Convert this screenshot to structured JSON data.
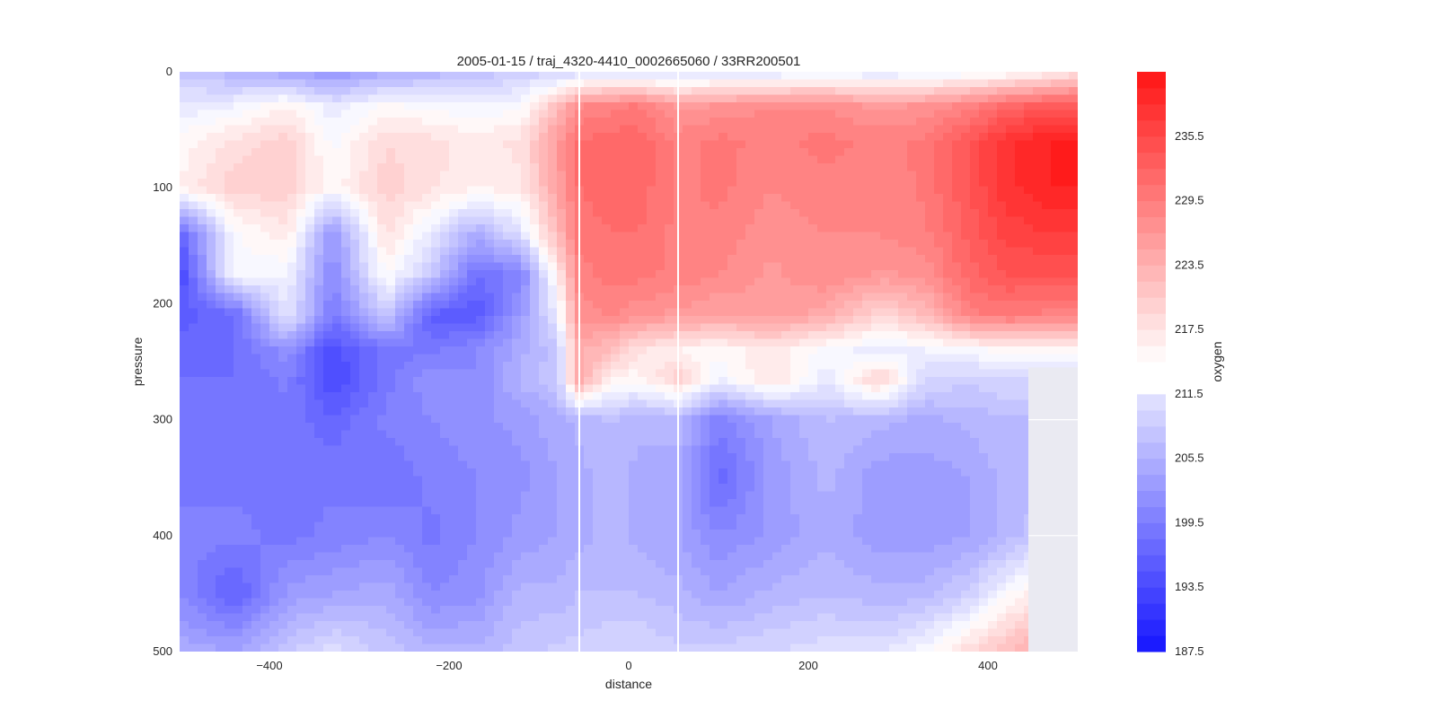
{
  "chart_data": {
    "type": "heatmap",
    "title": "2005-01-15 / traj_4320-4410_0002665060 / 33RR200501",
    "xlabel": "distance",
    "ylabel": "pressure",
    "colorbar_label": "oxygen",
    "xlim": [
      -500,
      500
    ],
    "ylim": [
      500,
      0
    ],
    "y_inverted": true,
    "x_ticks": [
      -400,
      -200,
      0,
      200,
      400
    ],
    "x_tick_labels": [
      "−400",
      "−200",
      "0",
      "200",
      "400"
    ],
    "y_ticks": [
      0,
      100,
      200,
      300,
      400,
      500
    ],
    "y_tick_labels": [
      "0",
      "100",
      "200",
      "300",
      "400",
      "500"
    ],
    "colorbar": {
      "min": 187.5,
      "max": 241.5,
      "step": 1.5,
      "ticks": [
        187.5,
        193.5,
        199.5,
        205.5,
        211.5,
        217.5,
        223.5,
        229.5,
        235.5
      ],
      "tick_labels": [
        "187.5",
        "193.5",
        "199.5",
        "205.5",
        "211.5",
        "217.5",
        "223.5",
        "229.5",
        "235.5"
      ],
      "low_color": "#1414ff",
      "mid_color": "#ffffff",
      "high_color": "#ff1414",
      "gap_between": [
        211.5,
        214.5
      ]
    },
    "vertical_lines_x": [
      -55,
      55
    ],
    "missing_region": {
      "x": [
        445,
        500
      ],
      "pressure": [
        255,
        500
      ],
      "color": "#eaeaf2"
    },
    "grid": true,
    "grid_color": "#eaeaf2",
    "x_nodes": [
      -500,
      -440,
      -380,
      -330,
      -270,
      -220,
      -170,
      -120,
      -80,
      -55,
      -20,
      10,
      55,
      100,
      160,
      220,
      280,
      330,
      380,
      420,
      470,
      500
    ],
    "pressure_nodes": [
      0,
      30,
      60,
      100,
      140,
      175,
      210,
      240,
      265,
      300,
      350,
      400,
      450,
      500
    ],
    "values": [
      [
        208,
        206,
        204,
        202,
        205,
        206,
        207,
        209,
        209,
        210,
        211,
        210,
        210,
        211,
        211,
        212,
        211,
        212,
        213,
        214,
        216,
        218
      ],
      [
        212,
        213,
        216,
        212,
        215,
        214,
        213,
        214,
        222,
        228,
        229,
        230,
        226,
        227,
        228,
        228,
        226,
        227,
        229,
        232,
        234,
        234
      ],
      [
        215,
        218,
        220,
        214,
        219,
        218,
        217,
        218,
        226,
        231,
        232,
        232,
        229,
        230,
        229,
        230,
        229,
        230,
        234,
        238,
        240,
        240
      ],
      [
        216,
        220,
        220,
        215,
        220,
        218,
        216,
        217,
        225,
        231,
        232,
        232,
        229,
        230,
        228,
        229,
        228,
        230,
        234,
        238,
        240,
        240
      ],
      [
        196,
        214,
        217,
        202,
        218,
        212,
        205,
        211,
        222,
        230,
        231,
        231,
        229,
        229,
        227,
        228,
        228,
        229,
        233,
        236,
        237,
        237
      ],
      [
        193,
        214,
        213,
        201,
        215,
        208,
        198,
        200,
        216,
        229,
        230,
        230,
        229,
        228,
        226,
        228,
        226,
        227,
        232,
        234,
        234,
        234
      ],
      [
        196,
        197,
        212,
        199,
        208,
        196,
        195,
        203,
        212,
        227,
        228,
        227,
        226,
        225,
        226,
        224,
        219,
        222,
        229,
        230,
        229,
        229
      ],
      [
        197,
        198,
        202,
        194,
        199,
        199,
        201,
        205,
        208,
        224,
        222,
        218,
        216,
        215,
        217,
        214,
        212,
        213,
        214,
        215,
        216,
        216
      ],
      [
        198,
        198,
        200,
        193,
        199,
        202,
        201,
        206,
        208,
        225,
        216,
        215,
        220,
        213,
        218,
        212,
        220,
        210,
        209,
        210,
        210,
        210
      ],
      [
        199,
        198,
        199,
        197,
        200,
        201,
        202,
        203,
        205,
        206,
        207,
        206,
        206,
        200,
        204,
        207,
        206,
        205,
        206,
        207,
        206,
        206
      ],
      [
        199,
        199,
        199,
        199,
        198,
        200,
        201,
        202,
        204,
        205,
        206,
        205,
        205,
        197,
        203,
        206,
        203,
        203,
        204,
        206,
        206,
        206
      ],
      [
        200,
        200,
        199,
        200,
        201,
        199,
        201,
        203,
        204,
        205,
        206,
        205,
        204,
        201,
        203,
        205,
        203,
        203,
        204,
        206,
        209,
        212
      ],
      [
        201,
        196,
        203,
        204,
        205,
        201,
        202,
        206,
        206,
        207,
        207,
        207,
        206,
        204,
        206,
        207,
        206,
        206,
        209,
        214,
        218,
        222
      ],
      [
        205,
        204,
        208,
        211,
        208,
        206,
        206,
        208,
        209,
        209,
        210,
        210,
        209,
        209,
        210,
        211,
        211,
        214,
        219,
        222,
        226,
        230
      ]
    ]
  }
}
